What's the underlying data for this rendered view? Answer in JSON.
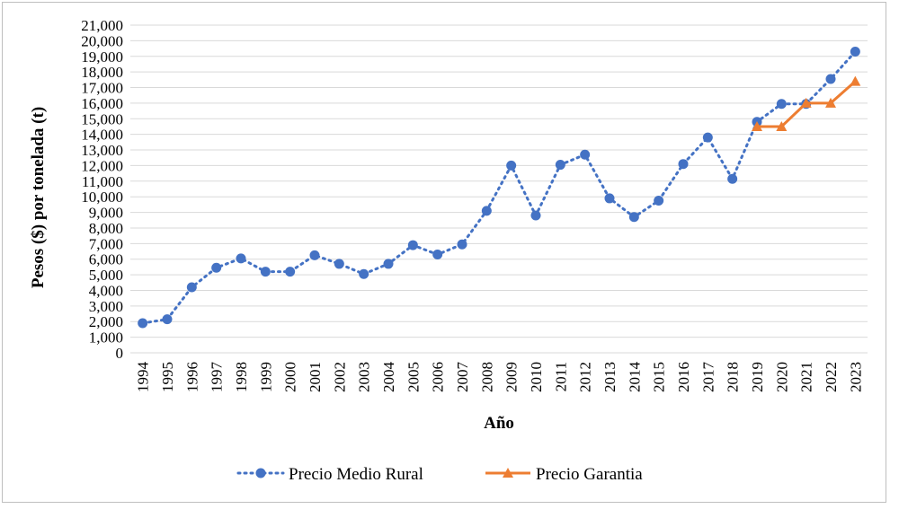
{
  "chart_data": {
    "type": "line",
    "xlabel": "Año",
    "ylabel": "Pesos ($) por tonelada (t)",
    "ylim": [
      0,
      21000
    ],
    "y_ticks": [
      "0",
      "1,000",
      "2,000",
      "3,000",
      "4,000",
      "5,000",
      "6,000",
      "7,000",
      "8,000",
      "9,000",
      "10,000",
      "11,000",
      "12,000",
      "13,000",
      "14,000",
      "15,000",
      "16,000",
      "17,000",
      "18,000",
      "19,000",
      "20,000",
      "21,000"
    ],
    "categories": [
      "1994",
      "1995",
      "1996",
      "1997",
      "1998",
      "1999",
      "2000",
      "2001",
      "2002",
      "2003",
      "2004",
      "2005",
      "2006",
      "2007",
      "2008",
      "2009",
      "2010",
      "2011",
      "2012",
      "2013",
      "2014",
      "2015",
      "2016",
      "2017",
      "2018",
      "2019",
      "2020",
      "2021",
      "2022",
      "2023"
    ],
    "grid": true,
    "legend_position": "bottom",
    "series": [
      {
        "name": "Precio Medio Rural",
        "color": "#4472C4",
        "line_style": "dotted",
        "marker": "circle",
        "values": [
          1900,
          2150,
          4200,
          5450,
          6050,
          5200,
          5200,
          6250,
          5700,
          5050,
          5700,
          6900,
          6300,
          6950,
          9100,
          12000,
          8800,
          12050,
          12700,
          9900,
          8700,
          9750,
          12100,
          13800,
          11150,
          14800,
          15950,
          15950,
          17550,
          19300
        ]
      },
      {
        "name": "Precio Garantia",
        "color": "#ED7D31",
        "line_style": "solid",
        "marker": "triangle",
        "values": [
          null,
          null,
          null,
          null,
          null,
          null,
          null,
          null,
          null,
          null,
          null,
          null,
          null,
          null,
          null,
          null,
          null,
          null,
          null,
          null,
          null,
          null,
          null,
          null,
          null,
          14500,
          14500,
          16000,
          16000,
          17400
        ]
      }
    ]
  }
}
